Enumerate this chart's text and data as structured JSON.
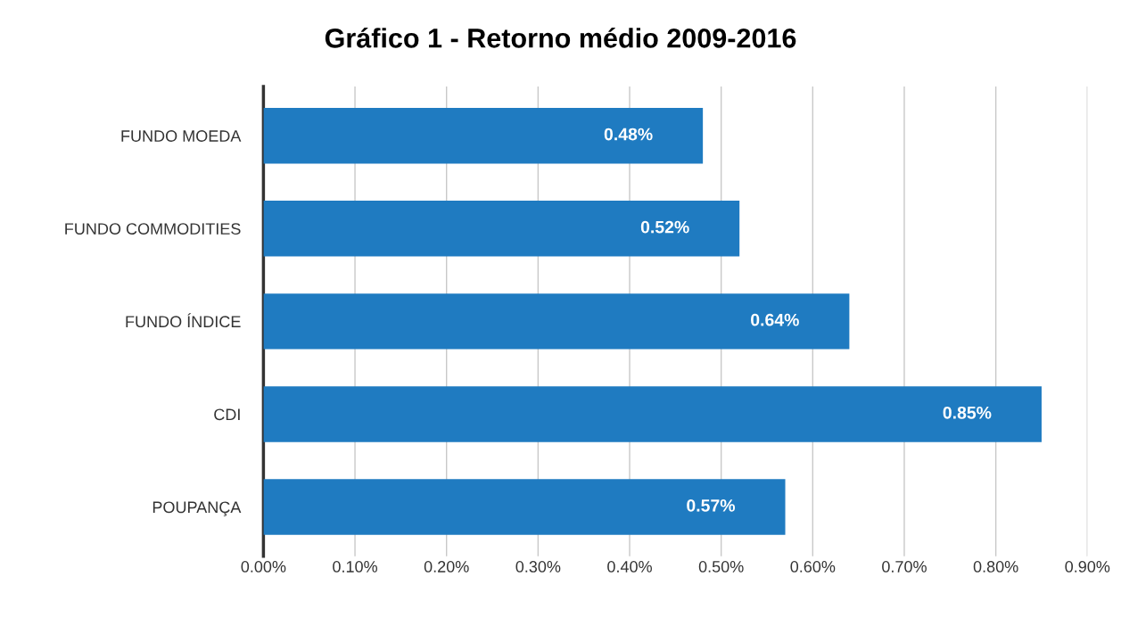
{
  "chart_data": {
    "type": "bar",
    "orientation": "horizontal",
    "title": "Gráfico 1 - Retorno médio 2009-2016",
    "categories": [
      "FUNDO MOEDA",
      "FUNDO COMMODITIES",
      "FUNDO ÍNDICE",
      "CDI",
      "POUPANÇA"
    ],
    "values": [
      0.48,
      0.52,
      0.64,
      0.85,
      0.57
    ],
    "value_labels": [
      "0.48%",
      "0.52%",
      "0.64%",
      "0.85%",
      "0.57%"
    ],
    "color": "#1f7bc1",
    "xlim": [
      0,
      0.9
    ],
    "xticks": [
      {
        "value": 0,
        "label": "0.00%"
      },
      {
        "value": 0.1,
        "label": "0.10%"
      },
      {
        "value": 0.2,
        "label": "0.20%"
      },
      {
        "value": 0.3,
        "label": "0.30%"
      },
      {
        "value": 0.4,
        "label": "0.40%"
      },
      {
        "value": 0.5,
        "label": "0.50%"
      },
      {
        "value": 0.6,
        "label": "0.60%"
      },
      {
        "value": 0.7,
        "label": "0.70%"
      },
      {
        "value": 0.8,
        "label": "0.80%"
      },
      {
        "value": 0.9,
        "label": "0.90%"
      }
    ],
    "grid": "x"
  }
}
